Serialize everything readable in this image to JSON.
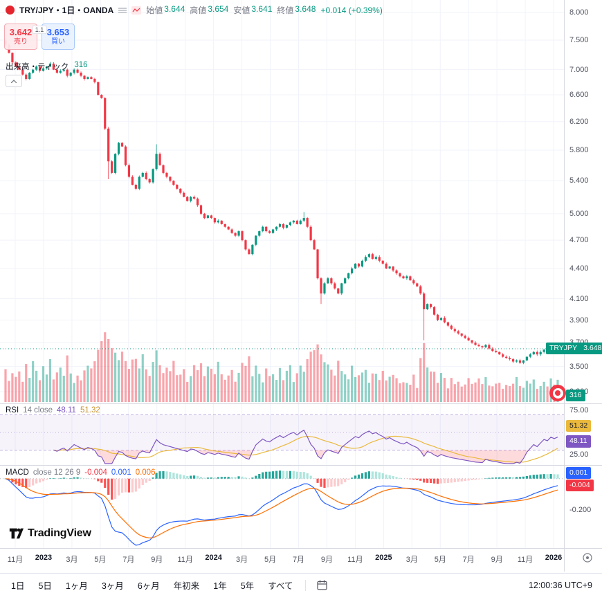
{
  "app": {
    "brand": "TradingView"
  },
  "colors": {
    "up": "#089981",
    "down": "#f23645",
    "vol_up": "rgba(8,153,129,0.45)",
    "vol_dn": "rgba(242,54,69,0.45)",
    "rsi": "#7e57c2",
    "rsi_ma": "#eab93d",
    "macd": "#2962ff",
    "macd_signal": "#ff6d00",
    "sell": "#f23645",
    "buy": "#2962ff"
  },
  "legend": {
    "symbol": "TRY/JPY・1日・OANDA",
    "ohlc": [
      {
        "label": "始値",
        "value": "3.644"
      },
      {
        "label": "高値",
        "value": "3.654"
      },
      {
        "label": "安値",
        "value": "3.641"
      },
      {
        "label": "終値",
        "value": "3.648"
      }
    ],
    "change": "+0.014 (+0.39%)"
  },
  "trade": {
    "sell_price": "3.642",
    "sell_label": "売り",
    "spread": "1.1",
    "buy_price": "3.653",
    "buy_label": "買い"
  },
  "volume_row": {
    "label": "出来高・ティック",
    "value": "316"
  },
  "rsi_legend": {
    "title": "RSI",
    "params": "14 close",
    "value": "48.11",
    "ma_value": "51.32",
    "axis_hi": "75.00",
    "axis_lo": "25.00"
  },
  "macd_legend": {
    "title": "MACD",
    "params": "close 12 26 9",
    "hist": "-0.004",
    "macd": "0.001",
    "signal": "0.006",
    "axis": "-0.200"
  },
  "price_badge": {
    "symbol": "TRYJPY",
    "price": "3.648"
  },
  "volume_badge": "316",
  "footer": {
    "ranges": [
      "1日",
      "5日",
      "1ヶ月",
      "3ヶ月",
      "6ヶ月",
      "年初来",
      "1年",
      "5年",
      "すべて"
    ],
    "clock": "12:00:36 UTC+9"
  },
  "chart_data": {
    "type": "candlestick",
    "title": "TRY/JPY・1日・OANDA",
    "scale": "log",
    "x_labels": [
      "11月",
      "2023",
      "3月",
      "5月",
      "7月",
      "9月",
      "11月",
      "2024",
      "3月",
      "5月",
      "7月",
      "9月",
      "11月",
      "2025",
      "3月",
      "5月",
      "7月",
      "9月",
      "11月",
      "2026"
    ],
    "y_ticks": [
      8.0,
      7.5,
      7.0,
      6.6,
      6.2,
      5.8,
      5.4,
      5.0,
      4.7,
      4.4,
      4.1,
      3.9,
      3.7,
      3.5,
      3.3
    ],
    "current_price": 3.648,
    "ohlc_today": {
      "open": 3.644,
      "high": 3.654,
      "low": 3.641,
      "close": 3.648,
      "change_abs": 0.014,
      "change_pct": 0.39
    },
    "volume_last": 316,
    "closes_weekly_approx": [
      7.42,
      7.28,
      7.12,
      7.05,
      7.0,
      6.92,
      6.85,
      6.95,
      7.0,
      7.05,
      6.98,
      7.02,
      7.05,
      7.1,
      7.0,
      6.95,
      6.98,
      7.0,
      6.9,
      6.95,
      7.0,
      6.95,
      6.9,
      6.85,
      6.88,
      6.85,
      6.8,
      6.6,
      6.55,
      6.1,
      5.65,
      5.5,
      5.75,
      5.9,
      5.85,
      5.6,
      5.45,
      5.35,
      5.3,
      5.45,
      5.5,
      5.42,
      5.38,
      5.55,
      5.75,
      5.6,
      5.5,
      5.45,
      5.4,
      5.35,
      5.3,
      5.25,
      5.2,
      5.15,
      5.2,
      5.18,
      5.1,
      5.0,
      4.95,
      4.98,
      4.95,
      4.9,
      4.92,
      4.88,
      4.85,
      4.82,
      4.78,
      4.75,
      4.8,
      4.7,
      4.6,
      4.55,
      4.65,
      4.75,
      4.8,
      4.85,
      4.8,
      4.78,
      4.82,
      4.85,
      4.88,
      4.84,
      4.87,
      4.9,
      4.92,
      4.88,
      4.92,
      4.95,
      4.85,
      4.7,
      4.6,
      4.3,
      4.15,
      4.25,
      4.3,
      4.25,
      4.2,
      4.15,
      4.25,
      4.3,
      4.35,
      4.4,
      4.45,
      4.42,
      4.48,
      4.52,
      4.55,
      4.5,
      4.52,
      4.48,
      4.45,
      4.4,
      4.42,
      4.38,
      4.35,
      4.32,
      4.3,
      4.32,
      4.28,
      4.25,
      4.22,
      4.15,
      4.0,
      4.05,
      4.02,
      3.95,
      3.9,
      3.92,
      3.88,
      3.85,
      3.82,
      3.8,
      3.78,
      3.76,
      3.74,
      3.72,
      3.7,
      3.68,
      3.67,
      3.66,
      3.68,
      3.65,
      3.63,
      3.62,
      3.6,
      3.58,
      3.57,
      3.56,
      3.54,
      3.55,
      3.53,
      3.55,
      3.58,
      3.6,
      3.62,
      3.6,
      3.62,
      3.64,
      3.63,
      3.65,
      3.64,
      3.648
    ],
    "volume_rel_approx": [
      5,
      3,
      4,
      3,
      4,
      3,
      5,
      3,
      6,
      4,
      3,
      5,
      4,
      6,
      3,
      4,
      5,
      4,
      7,
      4,
      3,
      4,
      3,
      4,
      5,
      5,
      6,
      8,
      9,
      10,
      9,
      8,
      7,
      6,
      7,
      6,
      5,
      6,
      6,
      5,
      7,
      5,
      4,
      6,
      8,
      5,
      4,
      5,
      4,
      6,
      4,
      4,
      5,
      3,
      4,
      5,
      5,
      6,
      4,
      5,
      5,
      4,
      6,
      4,
      3,
      4,
      5,
      3,
      4,
      6,
      5,
      7,
      4,
      5,
      4,
      3,
      5,
      4,
      4,
      3,
      5,
      3,
      4,
      5,
      3,
      4,
      5,
      4,
      6,
      7,
      8,
      9,
      7,
      6,
      5,
      5,
      4,
      6,
      4,
      4,
      3,
      5,
      3,
      4,
      4,
      5,
      3,
      4,
      4,
      3,
      4,
      3,
      3,
      4,
      3,
      2,
      3,
      3,
      2,
      4,
      2,
      6,
      9,
      5,
      4,
      4,
      3,
      4,
      3,
      2,
      3,
      2,
      3,
      2,
      2,
      3,
      2,
      3,
      3,
      2,
      3,
      2,
      2,
      2,
      3,
      2,
      2,
      2,
      2,
      3,
      2,
      2,
      3,
      2,
      3,
      2,
      2,
      3,
      2,
      3,
      2,
      3
    ],
    "wick_overrides": {
      "0": {
        "h": 7.53
      },
      "30": {
        "l": 5.42
      },
      "44": {
        "h": 5.88
      },
      "87": {
        "h": 5.02
      },
      "92": {
        "l": 4.05
      },
      "122": {
        "l": 3.72
      }
    },
    "indicators": {
      "rsi": {
        "name": "RSI",
        "period": 14,
        "source": "close",
        "last": 48.11,
        "ma_last": 51.32,
        "bands": [
          70,
          50,
          30
        ],
        "range": [
          25,
          75
        ]
      },
      "macd": {
        "name": "MACD",
        "fast": 12,
        "slow": 26,
        "signal": 9,
        "source": "close",
        "hist_last": -0.004,
        "macd_last": 0.001,
        "signal_last": 0.006,
        "axis_min_label": -0.2
      }
    }
  }
}
